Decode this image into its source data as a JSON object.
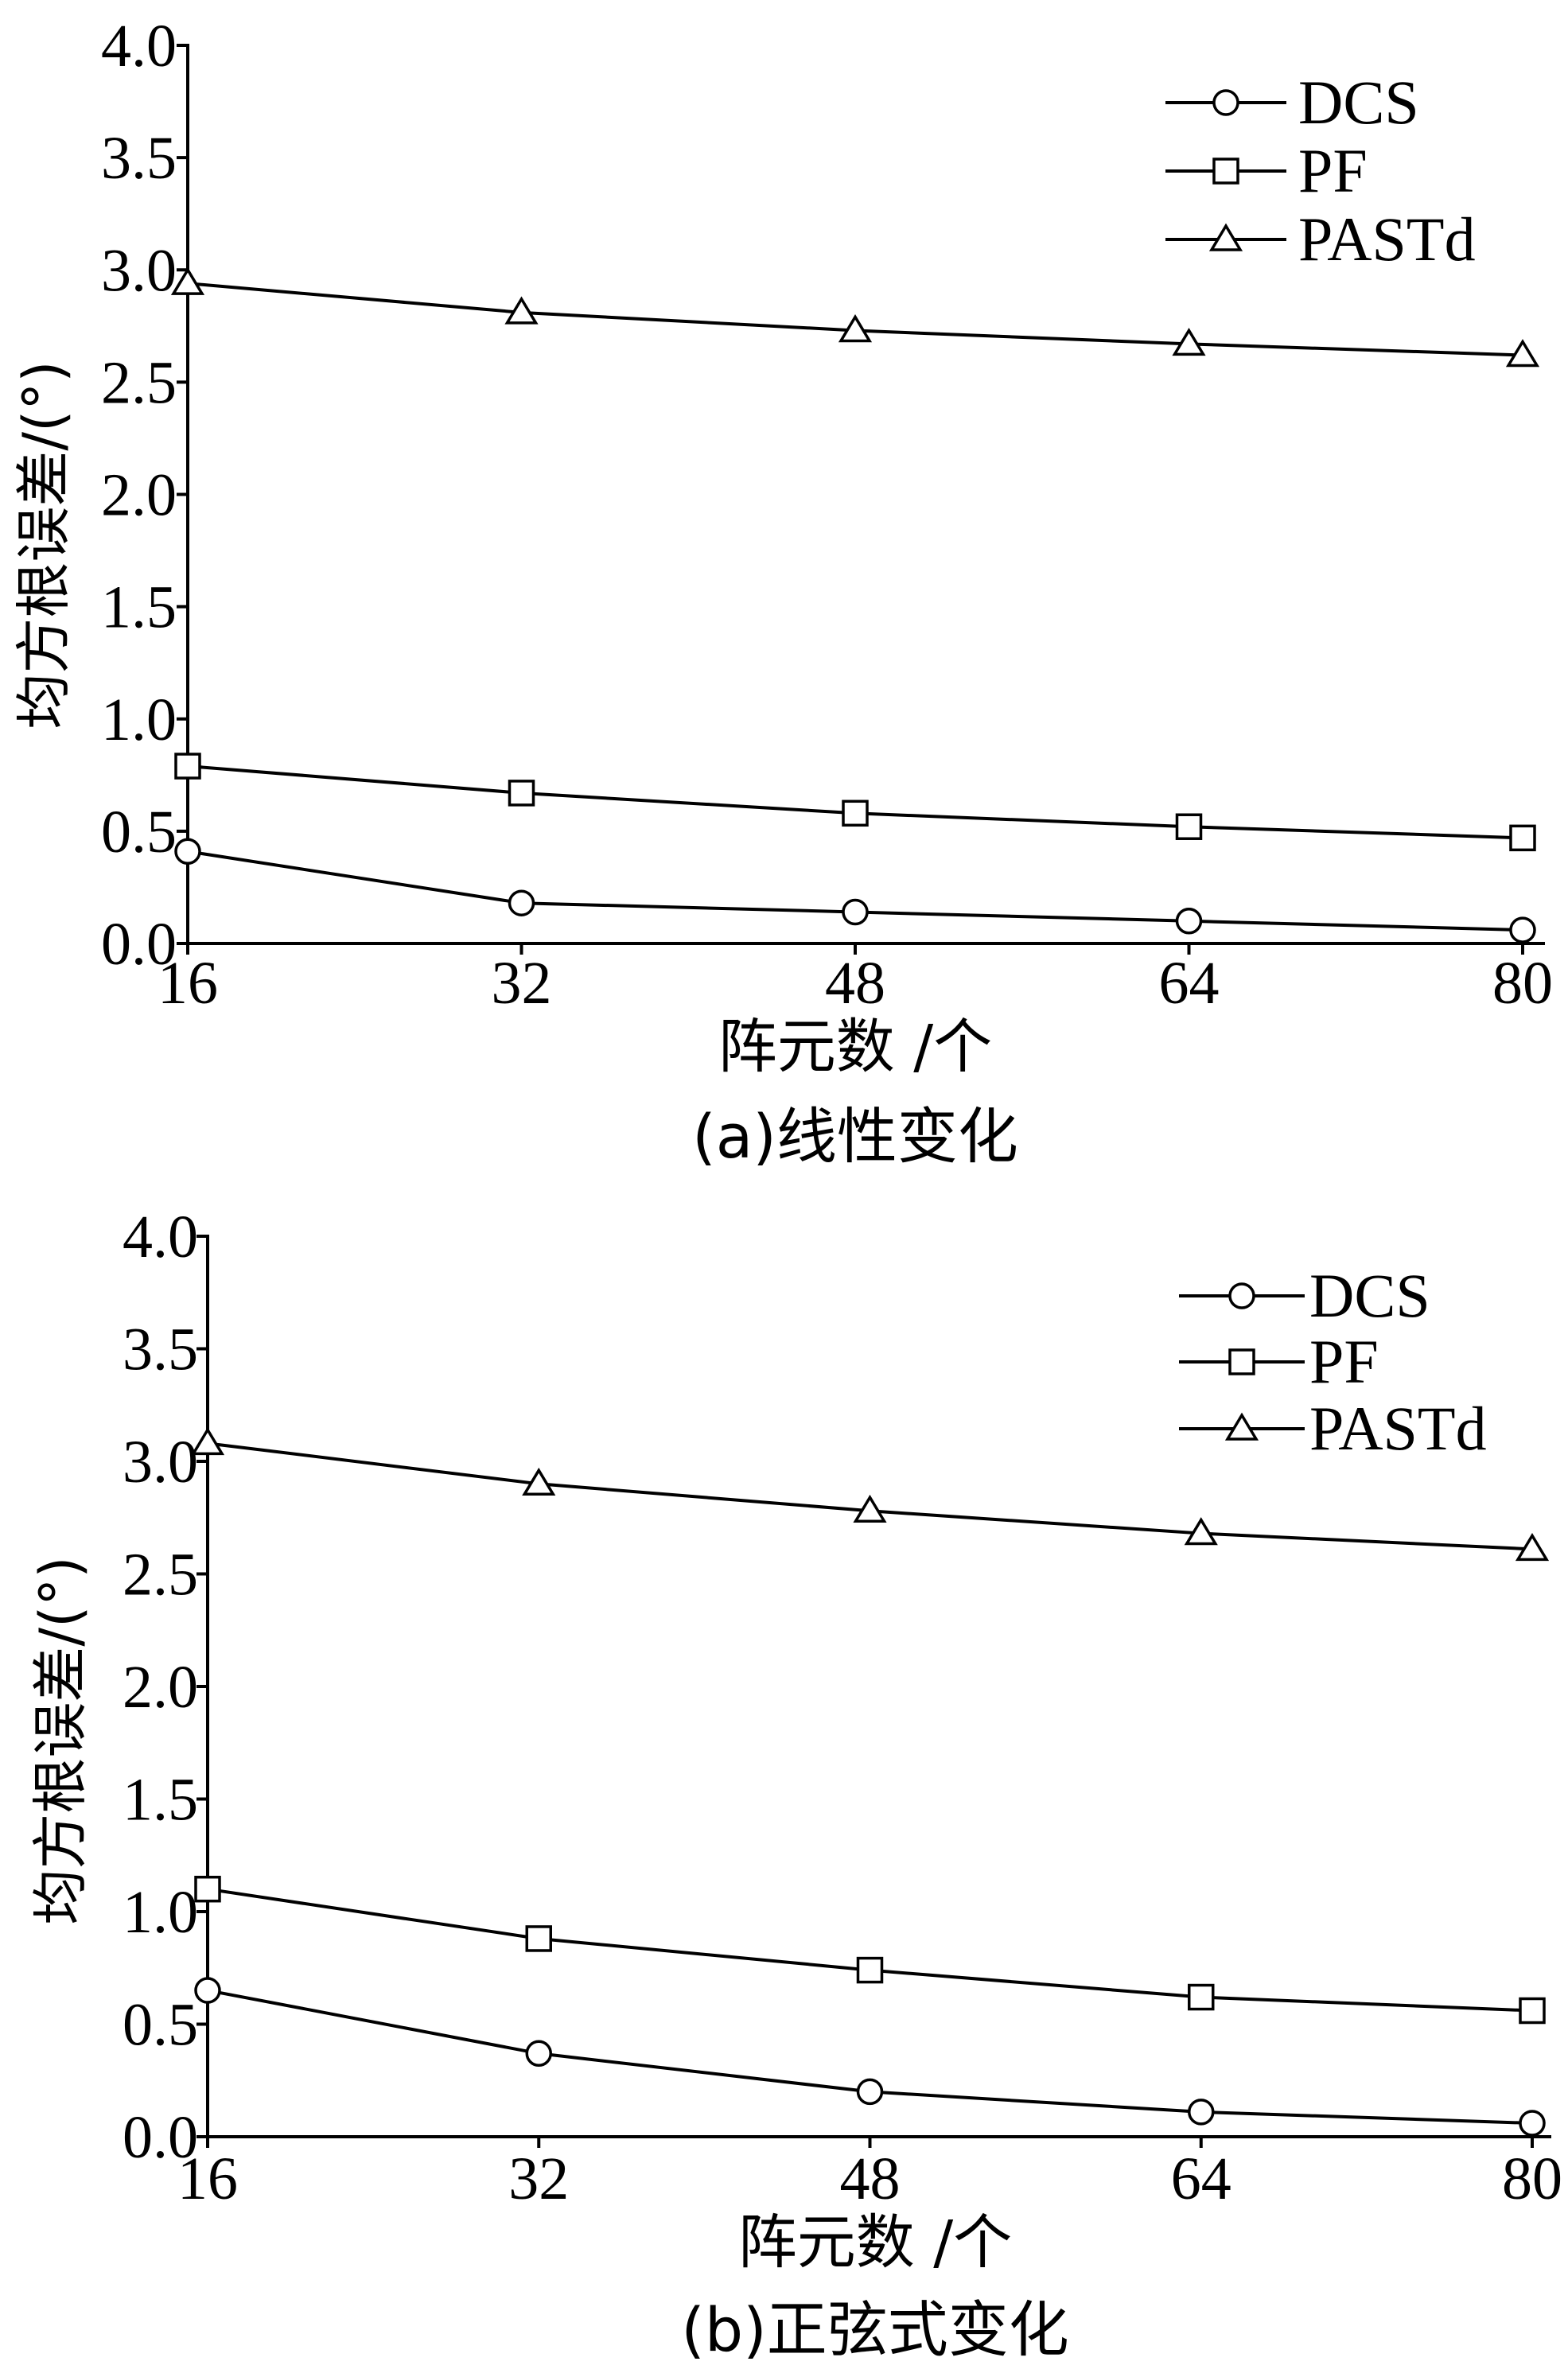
{
  "chart_data": [
    {
      "type": "line",
      "caption": "(a)线性变化",
      "xlabel": "阵元数 /个",
      "ylabel": "均方根误差/(°)",
      "x": [
        16,
        32,
        48,
        64,
        80
      ],
      "x_tick_labels": [
        "16",
        "32",
        "48",
        "64",
        "80"
      ],
      "xlim": [
        16,
        80
      ],
      "ylim": [
        0,
        4
      ],
      "y_ticks": [
        0,
        0.5,
        1,
        1.5,
        2,
        2.5,
        3,
        3.5,
        4
      ],
      "y_tick_labels": [
        "0.0",
        "0.5",
        "1.0",
        "1.5",
        "2.0",
        "2.5",
        "3.0",
        "3.5",
        "4.0"
      ],
      "grid": false,
      "legend_position": "top-right",
      "series": [
        {
          "name": "DCS",
          "marker": "circle",
          "color": "#000000",
          "values": [
            0.41,
            0.18,
            0.14,
            0.1,
            0.06
          ]
        },
        {
          "name": "PF",
          "marker": "square",
          "color": "#000000",
          "values": [
            0.79,
            0.67,
            0.58,
            0.52,
            0.47
          ]
        },
        {
          "name": "PASTd",
          "marker": "triangle",
          "color": "#000000",
          "values": [
            2.94,
            2.81,
            2.73,
            2.67,
            2.62
          ]
        }
      ]
    },
    {
      "type": "line",
      "caption": "(b)正弦式变化",
      "xlabel": "阵元数 /个",
      "ylabel": "均方根误差/(°)",
      "x": [
        16,
        32,
        48,
        64,
        80
      ],
      "x_tick_labels": [
        "16",
        "32",
        "48",
        "64",
        "80"
      ],
      "xlim": [
        16,
        80
      ],
      "ylim": [
        0,
        4
      ],
      "y_ticks": [
        0,
        0.5,
        1,
        1.5,
        2,
        2.5,
        3,
        3.5,
        4
      ],
      "y_tick_labels": [
        "0.0",
        "0.5",
        "1.0",
        "1.5",
        "2.0",
        "2.5",
        "3.0",
        "3.5",
        "4.0"
      ],
      "grid": false,
      "legend_position": "top-right",
      "series": [
        {
          "name": "DCS",
          "marker": "circle",
          "color": "#000000",
          "values": [
            0.65,
            0.37,
            0.2,
            0.11,
            0.06
          ]
        },
        {
          "name": "PF",
          "marker": "square",
          "color": "#000000",
          "values": [
            1.1,
            0.88,
            0.74,
            0.62,
            0.56
          ]
        },
        {
          "name": "PASTd",
          "marker": "triangle",
          "color": "#000000",
          "values": [
            3.08,
            2.9,
            2.78,
            2.68,
            2.61
          ]
        }
      ]
    }
  ]
}
